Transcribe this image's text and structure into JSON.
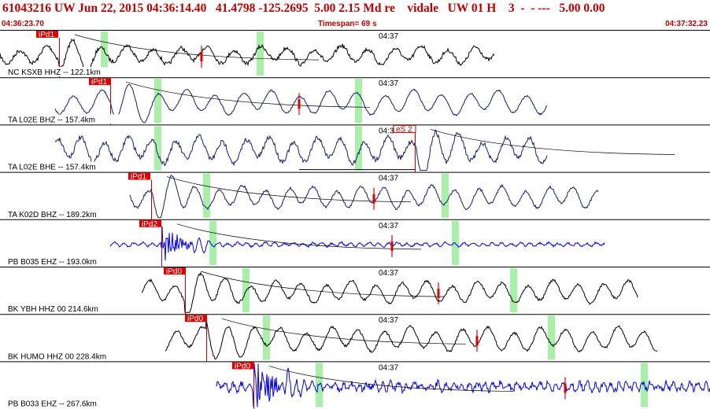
{
  "header": {
    "event_line": "61043216 UW Jun 22, 2015 04:36:14.40   41.4798 -125.2695  5.00 2.15 Md re    vidale   UW 01 H    3  -  - ---   5.00 0.00",
    "start_time": "04:36:23.70",
    "timespan": "Timespan=  69 s",
    "end_time": "04:37:32.23"
  },
  "colors": {
    "header_text": "#c00000",
    "pick_marker": "#e00000",
    "window_highlight": "#a8f0a8",
    "trace_black": "#000000",
    "trace_navy": "#1a1a6e",
    "trace_blue": "#0000ee"
  },
  "panels": [
    {
      "label": "NC KSXB HHZ -- 122.1km",
      "time_mark": "04:37",
      "pick": "iPd1",
      "color": "#000000"
    },
    {
      "label": "TA L02E BHZ -- 157.4km",
      "time_mark": "04:37",
      "pick": "iPd1",
      "color": "#1a1a6e"
    },
    {
      "label": "TA L02E BHE -- 157.4km",
      "time_mark": "04:3",
      "pick": "eS 2",
      "color": "#1a1a6e"
    },
    {
      "label": "TA K02D BHZ -- 189.2km",
      "time_mark": "04:37",
      "pick": "iPd1",
      "color": "#1a1a6e"
    },
    {
      "label": "PB B035 EHZ -- 193.0km",
      "time_mark": "04:37",
      "pick": "iPd2",
      "color": "#0000ee"
    },
    {
      "label": "BK YBH HHZ 00 214.6km",
      "time_mark": "04:37",
      "pick": "iPd0",
      "color": "#000000"
    },
    {
      "label": "BK HUMO HHZ 00 228.4km",
      "time_mark": "04:37",
      "pick": "iPd0",
      "color": "#000000"
    },
    {
      "label": "PB B033 EHZ -- 267.6km",
      "time_mark": "04:37",
      "pick": "iPd0",
      "color": "#0000ee"
    }
  ]
}
